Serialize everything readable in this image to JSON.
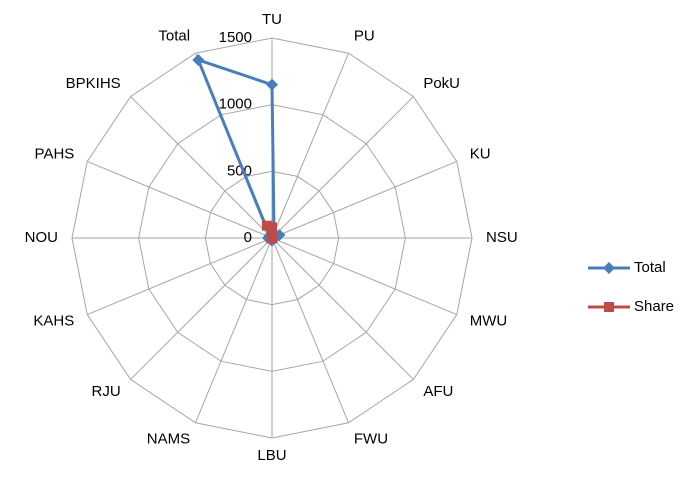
{
  "chart_data": {
    "type": "radar",
    "categories": [
      "TU",
      "PU",
      "PokU",
      "KU",
      "NSU",
      "MWU",
      "AFU",
      "FWU",
      "LBU",
      "NAMS",
      "RJU",
      "KAHS",
      "NOU",
      "PAHS",
      "BPKIHS",
      "Total"
    ],
    "series": [
      {
        "name": "Total",
        "color": "#4a7ebb",
        "marker": "diamond",
        "values": [
          1150,
          40,
          30,
          60,
          20,
          10,
          5,
          10,
          20,
          10,
          5,
          10,
          30,
          20,
          25,
          1445
        ]
      },
      {
        "name": "Share",
        "color": "#be4b48",
        "marker": "square",
        "values": [
          79.6,
          2.8,
          2.1,
          4.2,
          1.4,
          0.7,
          0.3,
          0.7,
          1.4,
          0.7,
          0.3,
          0.7,
          2.1,
          1.4,
          1.7,
          100
        ]
      }
    ],
    "ylim": [
      0,
      1500
    ],
    "yticks": [
      0,
      500,
      1000,
      1500
    ],
    "grid": true,
    "legend": "right"
  }
}
